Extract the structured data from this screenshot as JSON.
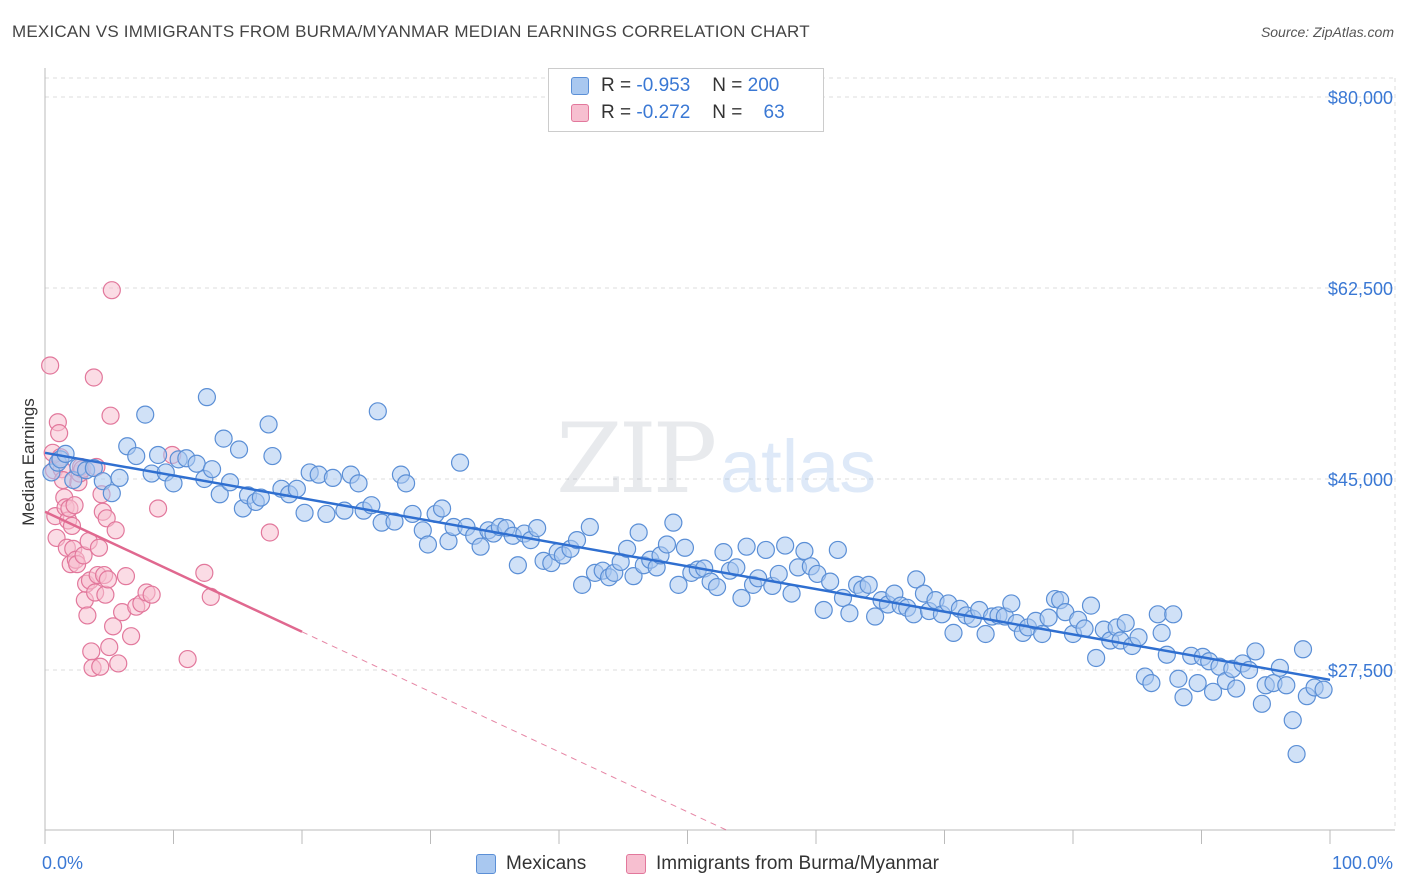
{
  "title": "MEXICAN VS IMMIGRANTS FROM BURMA/MYANMAR MEDIAN EARNINGS CORRELATION CHART",
  "source": "Source: ZipAtlas.com",
  "watermark": {
    "zip": "ZIP",
    "atlas": "atlas"
  },
  "legend_top": {
    "rows": [
      {
        "r_label": "R =",
        "r_value": "-0.953",
        "n_label": "N =",
        "n_value": "200"
      },
      {
        "r_label": "R =",
        "r_value": "-0.272",
        "n_label": "N =",
        "n_value": "63"
      }
    ]
  },
  "legend_bottom": {
    "items": [
      "Mexicans",
      "Immigrants from Burma/Myanmar"
    ]
  },
  "colors": {
    "blue_fill": "#a9c8f0",
    "blue_stroke": "#5b8fd6",
    "blue_line": "#2f6fd0",
    "pink_fill": "#f7bfd0",
    "pink_stroke": "#e2789c",
    "pink_line": "#e0688f",
    "tick_label": "#3a78d4",
    "grid": "#dcdcdc"
  },
  "chart_data": {
    "type": "scatter",
    "xlabel": "",
    "ylabel": "Median Earnings",
    "xlim": [
      0,
      100
    ],
    "ylim": [
      9000,
      85000
    ],
    "x_tick_labels": [
      "0.0%",
      "100.0%"
    ],
    "y_ticks": [
      27500,
      45000,
      62500,
      80000
    ],
    "y_tick_labels": [
      "$27,500",
      "$45,000",
      "$62,500",
      "$80,000"
    ],
    "grid": true,
    "legend_placement": "top-center",
    "series": [
      {
        "name": "Mexicans",
        "r": -0.953,
        "n": 200,
        "trend": {
          "x": [
            0,
            100
          ],
          "y": [
            47400,
            26600
          ]
        },
        "points": [
          [
            0.5,
            45.6
          ],
          [
            1,
            46.5
          ],
          [
            1.2,
            46.8
          ],
          [
            1.6,
            47.3
          ],
          [
            2.2,
            44.9
          ],
          [
            2.6,
            46.1
          ],
          [
            3.2,
            45.8
          ],
          [
            3.8,
            46.0
          ],
          [
            4.5,
            44.8
          ],
          [
            5.2,
            43.7
          ],
          [
            5.8,
            45.1
          ],
          [
            6.4,
            48.0
          ],
          [
            7.1,
            47.1
          ],
          [
            7.8,
            50.9
          ],
          [
            8.3,
            45.5
          ],
          [
            8.8,
            47.2
          ],
          [
            9.4,
            45.6
          ],
          [
            10,
            44.6
          ],
          [
            10.4,
            46.8
          ],
          [
            11,
            46.9
          ],
          [
            11.8,
            46.4
          ],
          [
            12.4,
            45.0
          ],
          [
            12.6,
            52.5
          ],
          [
            13,
            45.9
          ],
          [
            13.6,
            43.6
          ],
          [
            13.9,
            48.7
          ],
          [
            14.4,
            44.7
          ],
          [
            15.1,
            47.7
          ],
          [
            15.4,
            42.3
          ],
          [
            15.8,
            43.5
          ],
          [
            16.4,
            42.9
          ],
          [
            16.8,
            43.3
          ],
          [
            17.4,
            50.0
          ],
          [
            17.7,
            47.1
          ],
          [
            18.4,
            44.1
          ],
          [
            19,
            43.6
          ],
          [
            19.6,
            44.1
          ],
          [
            20.2,
            41.9
          ],
          [
            20.6,
            45.6
          ],
          [
            21.3,
            45.4
          ],
          [
            21.9,
            41.8
          ],
          [
            22.4,
            45.1
          ],
          [
            23.3,
            42.1
          ],
          [
            23.8,
            45.4
          ],
          [
            24.4,
            44.6
          ],
          [
            24.8,
            42.1
          ],
          [
            25.4,
            42.6
          ],
          [
            25.9,
            51.2
          ],
          [
            26.2,
            41.0
          ],
          [
            27.2,
            41.1
          ],
          [
            27.7,
            45.4
          ],
          [
            28.1,
            44.6
          ],
          [
            28.6,
            41.8
          ],
          [
            29.4,
            40.3
          ],
          [
            29.8,
            39.0
          ],
          [
            30.4,
            41.8
          ],
          [
            30.9,
            42.3
          ],
          [
            31.4,
            39.3
          ],
          [
            31.8,
            40.6
          ],
          [
            32.3,
            46.5
          ],
          [
            32.8,
            40.6
          ],
          [
            33.4,
            39.8
          ],
          [
            33.9,
            38.8
          ],
          [
            34.5,
            40.3
          ],
          [
            34.9,
            40.0
          ],
          [
            35.4,
            40.6
          ],
          [
            35.9,
            40.5
          ],
          [
            36.4,
            39.8
          ],
          [
            36.8,
            37.1
          ],
          [
            37.3,
            40.0
          ],
          [
            37.8,
            39.4
          ],
          [
            38.3,
            40.5
          ],
          [
            38.8,
            37.5
          ],
          [
            39.4,
            37.3
          ],
          [
            39.9,
            38.3
          ],
          [
            40.3,
            38.0
          ],
          [
            40.9,
            38.6
          ],
          [
            41.4,
            39.4
          ],
          [
            41.8,
            35.3
          ],
          [
            42.4,
            40.6
          ],
          [
            42.8,
            36.4
          ],
          [
            43.4,
            36.6
          ],
          [
            43.9,
            36.0
          ],
          [
            44.3,
            36.4
          ],
          [
            44.8,
            37.4
          ],
          [
            45.3,
            38.6
          ],
          [
            45.8,
            36.1
          ],
          [
            46.2,
            40.1
          ],
          [
            46.6,
            37.1
          ],
          [
            47.1,
            37.6
          ],
          [
            47.6,
            36.9
          ],
          [
            47.9,
            38.0
          ],
          [
            48.4,
            39.0
          ],
          [
            48.9,
            41.0
          ],
          [
            49.3,
            35.3
          ],
          [
            49.8,
            38.7
          ],
          [
            50.3,
            36.4
          ],
          [
            50.8,
            36.7
          ],
          [
            51.3,
            36.8
          ],
          [
            51.8,
            35.6
          ],
          [
            52.3,
            35.1
          ],
          [
            52.8,
            38.3
          ],
          [
            53.3,
            36.6
          ],
          [
            53.8,
            36.9
          ],
          [
            54.2,
            34.1
          ],
          [
            54.6,
            38.8
          ],
          [
            55.1,
            35.3
          ],
          [
            55.5,
            35.9
          ],
          [
            56.1,
            38.5
          ],
          [
            56.6,
            35.2
          ],
          [
            57.1,
            36.3
          ],
          [
            57.6,
            38.9
          ],
          [
            58.1,
            34.5
          ],
          [
            58.6,
            36.9
          ],
          [
            59.1,
            38.4
          ],
          [
            59.6,
            37.0
          ],
          [
            60.1,
            36.3
          ],
          [
            60.6,
            33.0
          ],
          [
            61.1,
            35.6
          ],
          [
            61.7,
            38.5
          ],
          [
            62.1,
            34.1
          ],
          [
            62.6,
            32.7
          ],
          [
            63.2,
            35.3
          ],
          [
            63.6,
            34.9
          ],
          [
            64.1,
            35.3
          ],
          [
            64.6,
            32.4
          ],
          [
            65.1,
            33.9
          ],
          [
            65.6,
            33.5
          ],
          [
            66.1,
            34.5
          ],
          [
            66.6,
            33.4
          ],
          [
            67.1,
            33.2
          ],
          [
            67.6,
            32.6
          ],
          [
            67.8,
            35.8
          ],
          [
            68.4,
            34.5
          ],
          [
            68.8,
            32.9
          ],
          [
            69.3,
            33.9
          ],
          [
            69.8,
            32.6
          ],
          [
            70.3,
            33.6
          ],
          [
            70.7,
            30.9
          ],
          [
            71.2,
            33.1
          ],
          [
            71.7,
            32.5
          ],
          [
            72.2,
            32.2
          ],
          [
            72.7,
            33.0
          ],
          [
            73.2,
            30.8
          ],
          [
            73.7,
            32.4
          ],
          [
            74.2,
            32.5
          ],
          [
            74.7,
            32.4
          ],
          [
            75.2,
            33.6
          ],
          [
            75.6,
            31.8
          ],
          [
            76.1,
            30.9
          ],
          [
            76.5,
            31.4
          ],
          [
            77.1,
            32.0
          ],
          [
            77.6,
            30.8
          ],
          [
            78.1,
            32.3
          ],
          [
            78.6,
            34.0
          ],
          [
            79,
            33.9
          ],
          [
            79.4,
            32.8
          ],
          [
            80,
            30.8
          ],
          [
            80.4,
            32.1
          ],
          [
            80.9,
            31.3
          ],
          [
            81.4,
            33.4
          ],
          [
            81.8,
            28.6
          ],
          [
            82.4,
            31.2
          ],
          [
            82.9,
            30.2
          ],
          [
            83.4,
            31.4
          ],
          [
            83.7,
            30.2
          ],
          [
            84.1,
            31.8
          ],
          [
            84.6,
            29.7
          ],
          [
            85.1,
            30.5
          ],
          [
            85.6,
            26.9
          ],
          [
            86.1,
            26.3
          ],
          [
            86.6,
            32.6
          ],
          [
            86.9,
            30.9
          ],
          [
            87.3,
            28.9
          ],
          [
            87.8,
            32.6
          ],
          [
            88.2,
            26.7
          ],
          [
            88.6,
            25.0
          ],
          [
            89.2,
            28.8
          ],
          [
            89.7,
            26.3
          ],
          [
            90.1,
            28.7
          ],
          [
            90.6,
            28.3
          ],
          [
            90.9,
            25.5
          ],
          [
            91.4,
            27.8
          ],
          [
            91.9,
            26.5
          ],
          [
            92.4,
            27.6
          ],
          [
            92.7,
            25.8
          ],
          [
            93.2,
            28.1
          ],
          [
            93.7,
            27.5
          ],
          [
            94.2,
            29.2
          ],
          [
            94.7,
            24.4
          ],
          [
            95,
            26.1
          ],
          [
            95.6,
            26.3
          ],
          [
            96.1,
            27.7
          ],
          [
            96.6,
            26.1
          ],
          [
            97.1,
            22.9
          ],
          [
            97.4,
            19.8
          ],
          [
            97.9,
            29.4
          ],
          [
            98.2,
            25.1
          ],
          [
            98.8,
            25.9
          ],
          [
            99.5,
            25.7
          ]
        ]
      },
      {
        "name": "Immigrants from Burma/Myanmar",
        "r": -0.272,
        "n": 63,
        "trend": {
          "x": [
            0,
            20
          ],
          "y": [
            42000,
            31000
          ]
        },
        "trend_dashed": {
          "x": [
            20,
            100
          ],
          "y": [
            31000,
            -13000
          ]
        },
        "points": [
          [
            0.4,
            55.4
          ],
          [
            0.6,
            47.4
          ],
          [
            0.7,
            45.8
          ],
          [
            0.8,
            41.6
          ],
          [
            0.9,
            39.6
          ],
          [
            1,
            50.2
          ],
          [
            1.1,
            49.2
          ],
          [
            1.2,
            47.0
          ],
          [
            1.3,
            45.9
          ],
          [
            1.4,
            44.9
          ],
          [
            1.5,
            43.3
          ],
          [
            1.6,
            42.4
          ],
          [
            1.7,
            38.7
          ],
          [
            1.8,
            41.2
          ],
          [
            1.9,
            42.3
          ],
          [
            2.0,
            37.2
          ],
          [
            2.1,
            40.7
          ],
          [
            2.2,
            38.6
          ],
          [
            2.3,
            42.6
          ],
          [
            2.4,
            37.6
          ],
          [
            2.5,
            37.2
          ],
          [
            2.6,
            44.7
          ],
          [
            2.7,
            45.5
          ],
          [
            2.8,
            46.1
          ],
          [
            2.9,
            45.9
          ],
          [
            3.0,
            38.0
          ],
          [
            3.1,
            33.9
          ],
          [
            3.2,
            35.4
          ],
          [
            3.3,
            32.5
          ],
          [
            3.4,
            39.3
          ],
          [
            3.5,
            35.7
          ],
          [
            3.6,
            29.2
          ],
          [
            3.7,
            27.7
          ],
          [
            3.8,
            54.3
          ],
          [
            3.9,
            34.6
          ],
          [
            4.0,
            46.1
          ],
          [
            4.1,
            36.2
          ],
          [
            4.2,
            38.7
          ],
          [
            4.3,
            27.8
          ],
          [
            4.4,
            43.6
          ],
          [
            4.5,
            42.0
          ],
          [
            4.6,
            36.2
          ],
          [
            4.7,
            34.4
          ],
          [
            4.8,
            41.4
          ],
          [
            4.9,
            35.8
          ],
          [
            5.0,
            29.6
          ],
          [
            5.1,
            50.8
          ],
          [
            5.2,
            62.3
          ],
          [
            5.3,
            31.5
          ],
          [
            5.5,
            40.3
          ],
          [
            5.7,
            28.1
          ],
          [
            6.0,
            32.8
          ],
          [
            6.3,
            36.1
          ],
          [
            6.7,
            30.6
          ],
          [
            7.1,
            33.3
          ],
          [
            7.5,
            33.6
          ],
          [
            7.9,
            34.6
          ],
          [
            8.3,
            34.4
          ],
          [
            8.8,
            42.3
          ],
          [
            9.9,
            47.2
          ],
          [
            11.1,
            28.5
          ],
          [
            12.4,
            36.4
          ],
          [
            12.9,
            34.2
          ],
          [
            17.5,
            40.1
          ]
        ]
      }
    ]
  }
}
